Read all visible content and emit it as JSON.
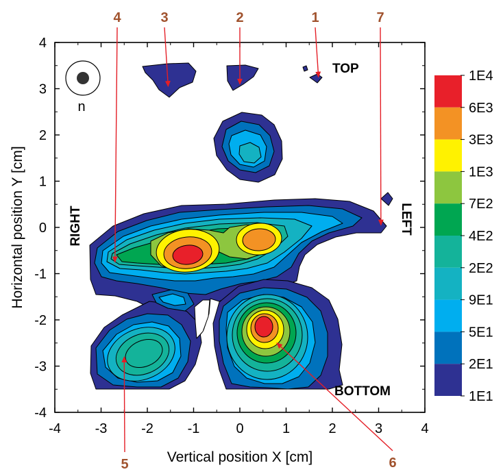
{
  "chart_data": {
    "type": "heatmap",
    "subtype": "filled-contour",
    "xlabel": "Vertical position X [cm]",
    "ylabel": "Horizontal position Y [cm]",
    "xlim": [
      -4,
      4
    ],
    "ylim": [
      -4,
      4
    ],
    "x_ticks": [
      "-4",
      "-3",
      "-2",
      "-1",
      "0",
      "1",
      "2",
      "3",
      "4"
    ],
    "y_ticks": [
      "-4",
      "-3",
      "-2",
      "-1",
      "0",
      "1",
      "2",
      "3",
      "4"
    ],
    "grid": false,
    "legend_position": "right",
    "colorbar": {
      "levels": [
        "1E4",
        "6E3",
        "3E3",
        "1E3",
        "7E2",
        "4E2",
        "2E2",
        "9E1",
        "5E1",
        "2E1",
        "1E1"
      ],
      "colors": [
        "#e8202a",
        "#f39224",
        "#fff200",
        "#8dc63f",
        "#00a651",
        "#14b39a",
        "#14b2c2",
        "#00aeef",
        "#0072bc",
        "#2e3192"
      ]
    },
    "contour_colors": {
      "c1": "#2e3192",
      "c2": "#0072bc",
      "c3": "#00aeef",
      "c4": "#14b2c2",
      "c5": "#14b39a",
      "c6": "#00a651",
      "c7": "#8dc63f",
      "c8": "#fff200",
      "c9": "#f39224",
      "c10": "#e8202a"
    },
    "region_labels": {
      "top": "TOP",
      "bottom": "BOTTOM",
      "left": "LEFT",
      "right": "RIGHT"
    },
    "inset_label": "n",
    "callouts": [
      {
        "label": "1",
        "target": [
          1.7,
          3.25
        ]
      },
      {
        "label": "2",
        "target": [
          0.0,
          3.1
        ]
      },
      {
        "label": "3",
        "target": [
          -1.55,
          3.05
        ]
      },
      {
        "label": "4",
        "target": [
          -2.7,
          -0.75
        ]
      },
      {
        "label": "5",
        "target": [
          -2.5,
          -2.8
        ]
      },
      {
        "label": "6",
        "target": [
          0.8,
          -2.5
        ]
      },
      {
        "label": "7",
        "target": [
          3.05,
          0.05
        ]
      }
    ],
    "callout_color": "#e41e26",
    "callout_text_color": "#a0522d",
    "peaks": [
      {
        "name": "central-upper",
        "x": 0.2,
        "y": 1.6,
        "max_level": "2E2"
      },
      {
        "name": "main-left",
        "x": -1.1,
        "y": -0.6,
        "max_level": "1E4"
      },
      {
        "name": "main-right",
        "x": 0.45,
        "y": -0.3,
        "max_level": "3E3"
      },
      {
        "name": "lower-center",
        "x": 0.55,
        "y": -2.2,
        "max_level": "1E4"
      },
      {
        "name": "lower-left",
        "x": -2.2,
        "y": -2.8,
        "max_level": "4E2"
      },
      {
        "name": "left-tail",
        "x": -2.8,
        "y": -0.8,
        "max_level": "7E2"
      }
    ]
  }
}
